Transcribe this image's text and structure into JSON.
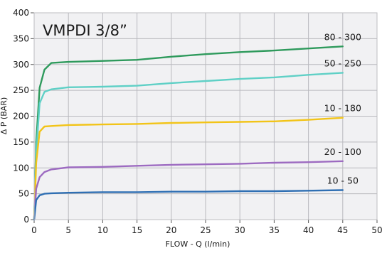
{
  "chart_data": {
    "type": "line",
    "title": "VMPDI 3/8”",
    "xlabel": "FLOW - Q (l/min)",
    "ylabel": "Δ P (BAR)",
    "xlim": [
      0,
      50
    ],
    "ylim": [
      0,
      400
    ],
    "x_ticks": [
      "0",
      "5",
      "10",
      "15",
      "20",
      "25",
      "30",
      "35",
      "40",
      "45",
      "50"
    ],
    "y_ticks": [
      "0",
      "50",
      "100",
      "150",
      "200",
      "250",
      "300",
      "350",
      "400"
    ],
    "grid": true,
    "background": "#f1f1f3",
    "series": [
      {
        "name": "80 - 300",
        "color": "#2e9a5c",
        "points": [
          [
            0,
            0
          ],
          [
            0.3,
            150
          ],
          [
            0.8,
            255
          ],
          [
            1.5,
            290
          ],
          [
            2.5,
            303
          ],
          [
            5,
            305
          ],
          [
            10,
            307
          ],
          [
            15,
            309
          ],
          [
            20,
            315
          ],
          [
            25,
            320
          ],
          [
            30,
            324
          ],
          [
            35,
            327
          ],
          [
            40,
            331
          ],
          [
            45,
            335
          ]
        ]
      },
      {
        "name": "50 - 250",
        "color": "#5fd0c6",
        "points": [
          [
            0,
            0
          ],
          [
            0.3,
            130
          ],
          [
            0.8,
            225
          ],
          [
            1.5,
            247
          ],
          [
            2.5,
            252
          ],
          [
            5,
            256
          ],
          [
            10,
            257
          ],
          [
            15,
            259
          ],
          [
            20,
            264
          ],
          [
            25,
            268
          ],
          [
            30,
            272
          ],
          [
            35,
            275
          ],
          [
            40,
            280
          ],
          [
            45,
            284
          ]
        ]
      },
      {
        "name": "10 - 180",
        "color": "#f2c418",
        "points": [
          [
            0,
            0
          ],
          [
            0.3,
            110
          ],
          [
            0.8,
            170
          ],
          [
            1.5,
            180
          ],
          [
            2.5,
            181
          ],
          [
            5,
            183
          ],
          [
            10,
            184
          ],
          [
            15,
            185
          ],
          [
            20,
            187
          ],
          [
            25,
            188
          ],
          [
            30,
            189
          ],
          [
            35,
            190
          ],
          [
            40,
            193
          ],
          [
            45,
            197
          ]
        ]
      },
      {
        "name": "20 - 100",
        "color": "#9d6bc1",
        "points": [
          [
            0,
            0
          ],
          [
            0.3,
            60
          ],
          [
            0.8,
            82
          ],
          [
            1.5,
            92
          ],
          [
            2.5,
            97
          ],
          [
            5,
            101
          ],
          [
            10,
            102
          ],
          [
            15,
            104
          ],
          [
            20,
            106
          ],
          [
            25,
            107
          ],
          [
            30,
            108
          ],
          [
            35,
            110
          ],
          [
            40,
            111
          ],
          [
            45,
            113
          ]
        ]
      },
      {
        "name": "10 - 50",
        "color": "#2f6fb3",
        "points": [
          [
            0,
            0
          ],
          [
            0.3,
            38
          ],
          [
            0.8,
            47
          ],
          [
            1.5,
            50
          ],
          [
            2.5,
            51
          ],
          [
            5,
            52
          ],
          [
            10,
            53
          ],
          [
            15,
            53
          ],
          [
            20,
            54
          ],
          [
            25,
            54
          ],
          [
            30,
            55
          ],
          [
            35,
            55
          ],
          [
            40,
            56
          ],
          [
            45,
            57
          ]
        ]
      }
    ]
  }
}
